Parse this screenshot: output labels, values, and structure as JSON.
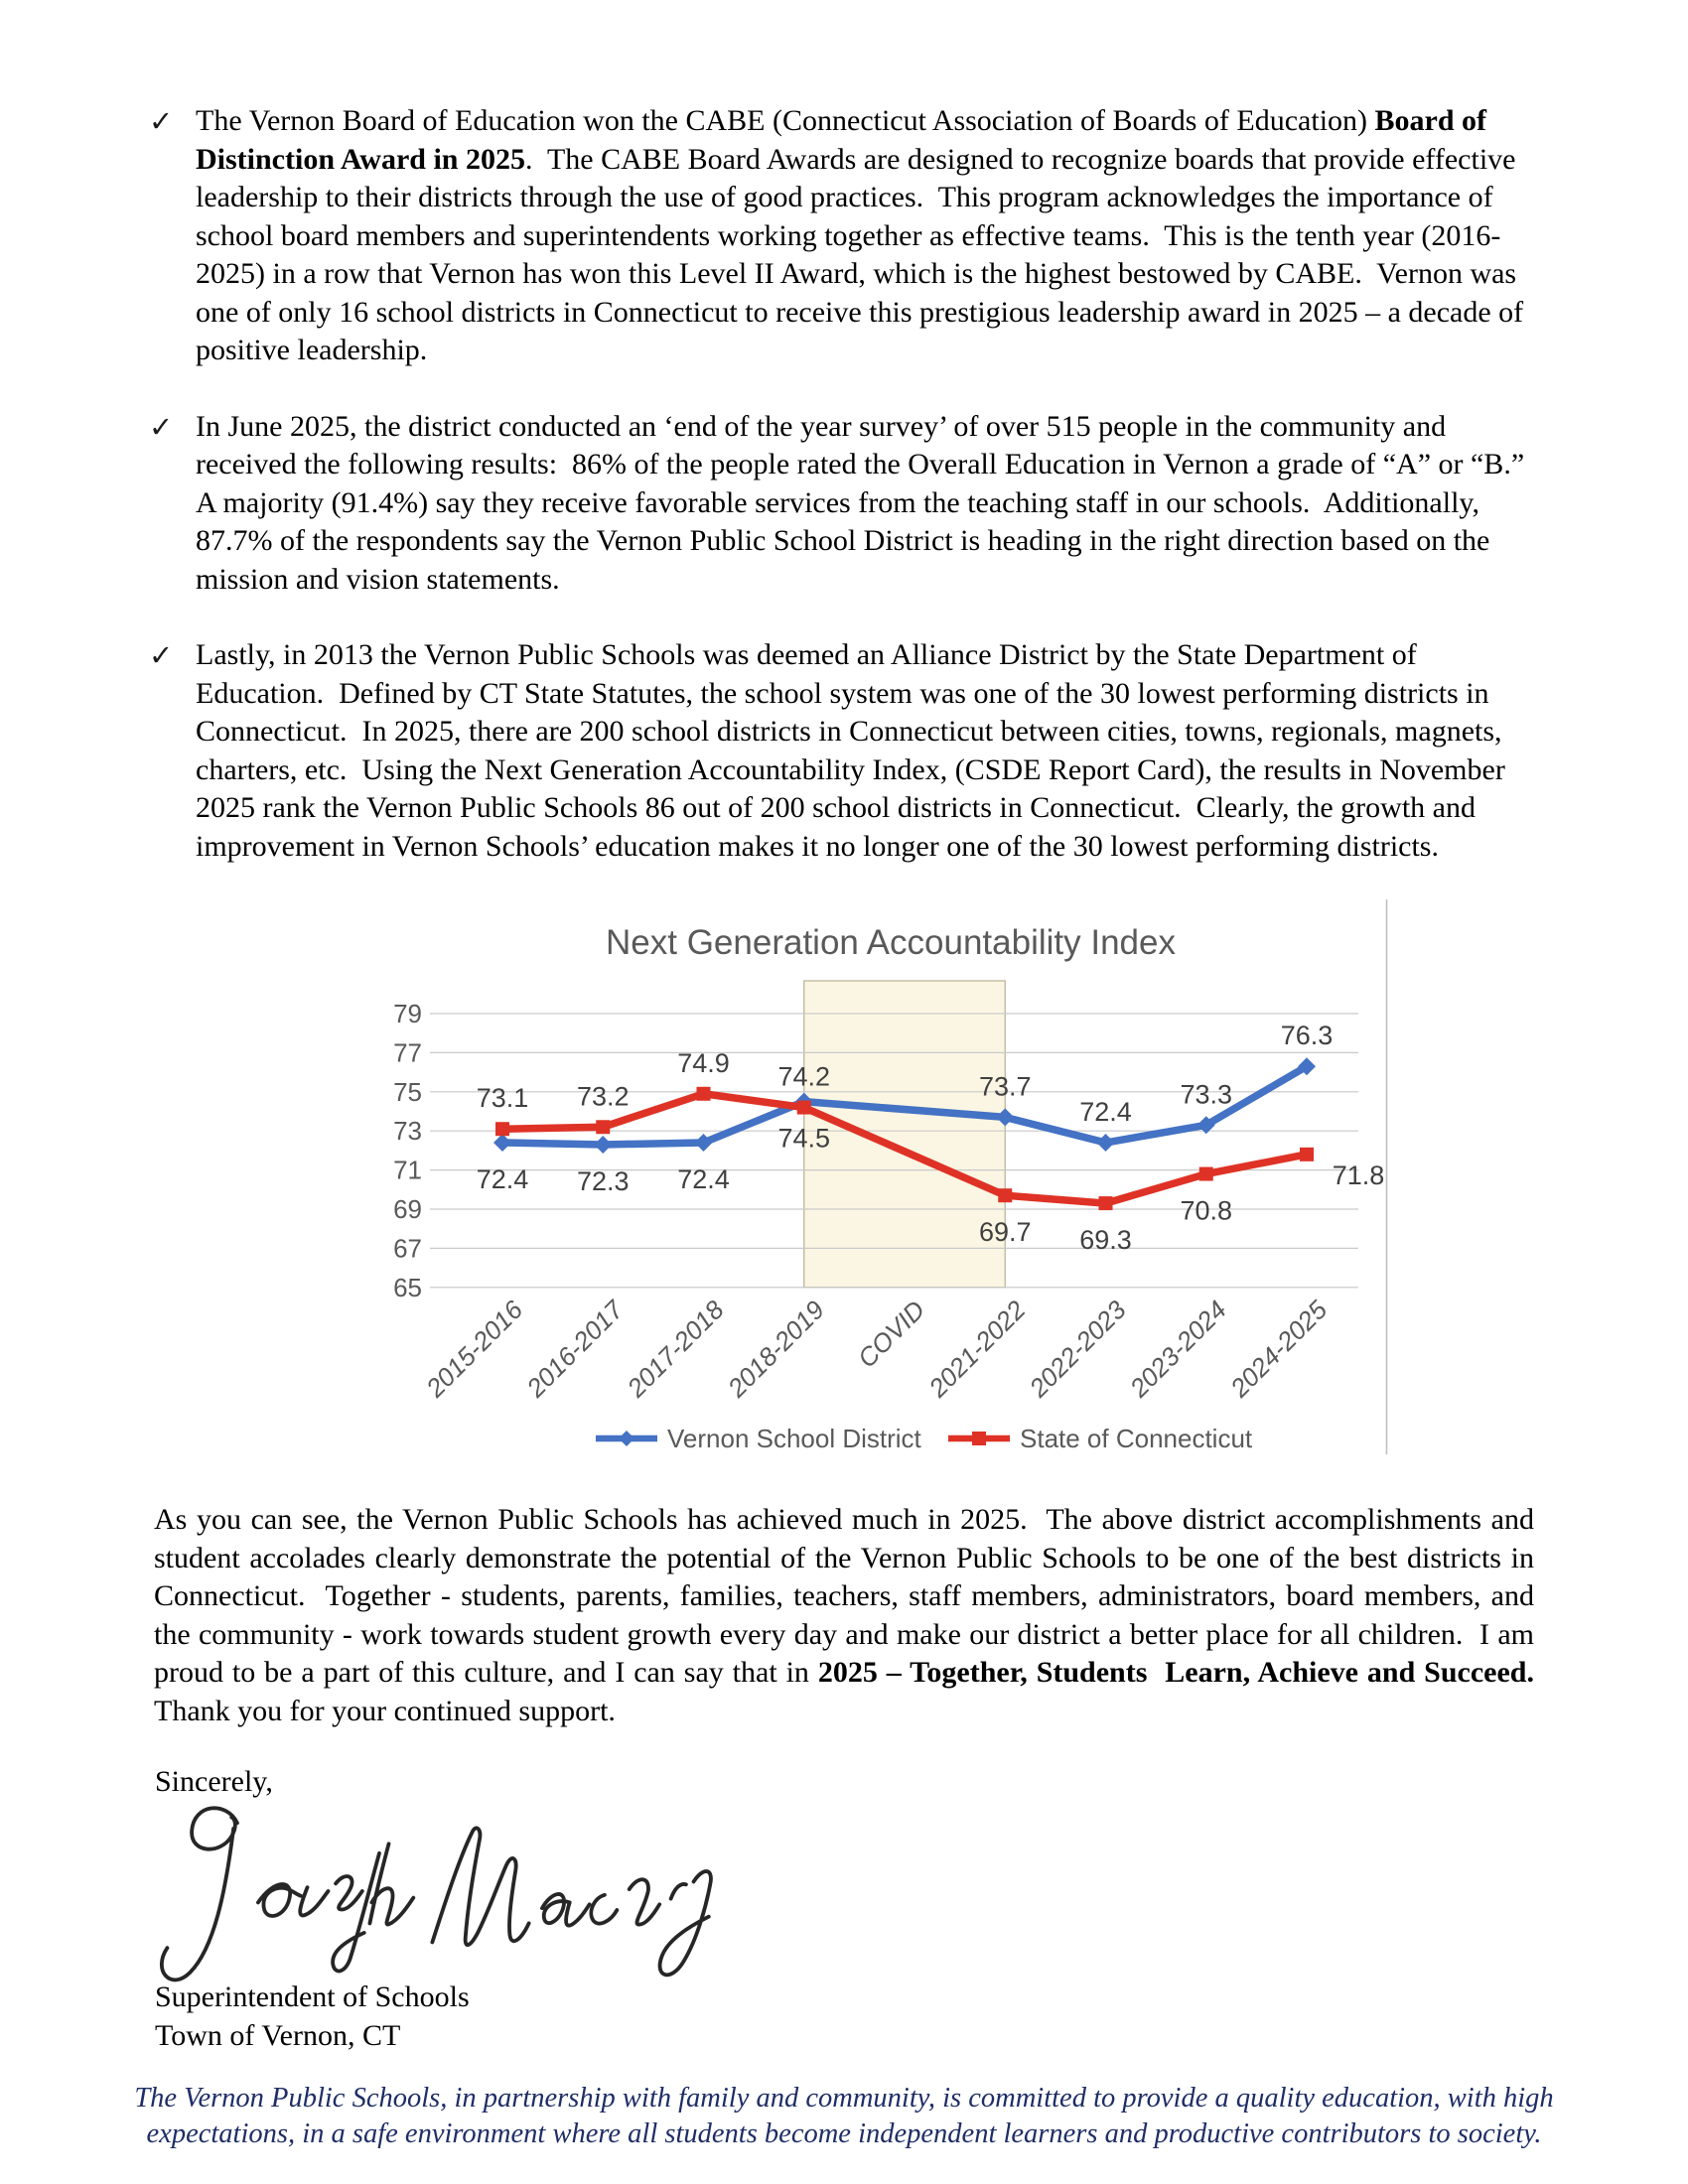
{
  "bullet_marker": "✓",
  "bullets": [
    {
      "segments": [
        {
          "text": "The Vernon Board of Education won the CABE (Connecticut Association of Boards of Education) ",
          "bold": false
        },
        {
          "text": "Board of Distinction Award in 2025",
          "bold": true
        },
        {
          "text": ".  The CABE Board Awards are designed to recognize boards that provide effective leadership to their districts through the use of good practices.  This program acknowledges the importance of school board members and superintendents working together as effective teams.  This is the tenth year (2016-2025) in a row that Vernon has won this Level II Award, which is the highest bestowed by CABE.  Vernon was one of only 16 school districts in Connecticut to receive this prestigious leadership award in 2025 – a decade of positive leadership.",
          "bold": false
        }
      ]
    },
    {
      "segments": [
        {
          "text": "In June 2025, the district conducted an ‘end of the year survey’ of over 515 people in the community and received the following results:  86% of the people rated the Overall Education in Vernon a grade of “A” or “B.”  A majority (91.4%) say they receive favorable services from the teaching staff in our schools.  Additionally, 87.7% of the respondents say the Vernon Public School District is heading in the right direction based on the mission and vision statements.",
          "bold": false
        }
      ]
    },
    {
      "segments": [
        {
          "text": "Lastly, in 2013 the Vernon Public Schools was deemed an Alliance District by the State Department of Education.  Defined by CT State Statutes, the school system was one of the 30 lowest performing districts in Connecticut.  In 2025, there are 200 school districts in Connecticut between cities, towns, regionals, magnets, charters, etc.  Using the Next Generation Accountability Index, (CSDE Report Card), the results in November 2025 rank the Vernon Public Schools 86 out of 200 school districts in Connecticut.  Clearly, the growth and improvement in Vernon Schools’ education makes it no longer one of the 30 lowest performing districts.",
          "bold": false
        }
      ]
    }
  ],
  "closing_paragraph": {
    "segments": [
      {
        "text": "As you can see, the Vernon Public Schools has achieved much in 2025.  The above district accomplishments and student accolades clearly demonstrate the potential of the Vernon Public Schools to be one of the best districts in Connecticut.  Together - students, parents, families, teachers, staff members, administrators, board members, and the community - work towards student growth every day and make our district a better place for all children.  I am proud to be a part of this culture, and I can say that in ",
        "bold": false
      },
      {
        "text": "2025 – Together, Students  Learn, Achieve and Succeed.",
        "bold": true
      },
      {
        "text": "  Thank you for your continued support.",
        "bold": false
      }
    ]
  },
  "signature": {
    "salutation": "Sincerely,",
    "name": "Joseph Macary",
    "title_line1": "Superintendent of Schools",
    "title_line2": "Town of Vernon, CT"
  },
  "footer": {
    "mission": "The Vernon Public Schools, in partnership with family and community, is committed to provide a quality education, with high expectations, in a safe environment where all students become independent learners and productive contributors to society.",
    "color": "#1e2d66"
  },
  "chart_data": {
    "type": "line",
    "title": "Next Generation Accountability Index",
    "categories": [
      "2015-2016",
      "2016-2017",
      "2017-2018",
      "2018-2019",
      "COVID",
      "2021-2022",
      "2022-2023",
      "2023-2024",
      "2024-2025"
    ],
    "yticks": [
      65,
      67,
      69,
      71,
      73,
      75,
      77,
      79
    ],
    "ylim": [
      65,
      80.5
    ],
    "gridlines": true,
    "legend_position": "bottom",
    "covid_band": {
      "category": "COVID",
      "fill": "#FBF6E3",
      "border": "#BDB59C"
    },
    "series": [
      {
        "name": "Vernon School District",
        "color": "#4472C4",
        "marker": "diamond",
        "values": [
          72.4,
          72.3,
          72.4,
          74.5,
          null,
          73.7,
          72.4,
          73.3,
          76.3
        ],
        "label_positions": [
          "below",
          "below",
          "below",
          "below",
          null,
          "above",
          "above",
          "above",
          "above"
        ]
      },
      {
        "name": "State of Connecticut",
        "color": "#DF3226",
        "marker": "square",
        "values": [
          73.1,
          73.2,
          74.9,
          74.2,
          null,
          69.7,
          69.3,
          70.8,
          71.8
        ],
        "label_positions": [
          "above",
          "above",
          "above",
          "above",
          null,
          "below",
          "below",
          "below",
          "right"
        ]
      }
    ],
    "colors": {
      "title": "#595959",
      "axis_labels": "#595959",
      "data_labels": "#3f3f3f",
      "grid": "#c9c9c9"
    }
  }
}
